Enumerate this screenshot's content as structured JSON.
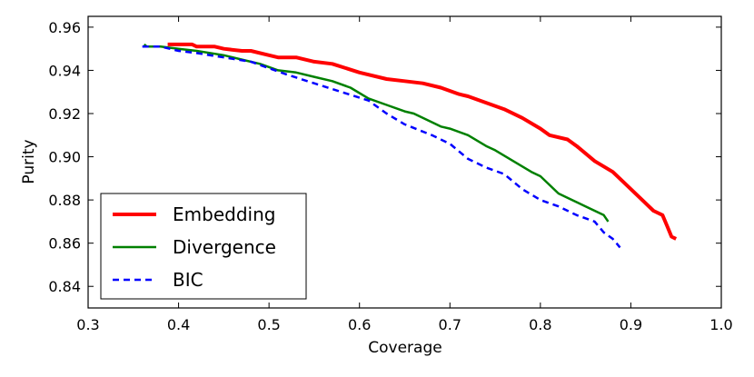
{
  "chart_data": {
    "type": "line",
    "title": "",
    "xlabel": "Coverage",
    "ylabel": "Purity",
    "xlim": [
      0.3,
      1.0
    ],
    "ylim": [
      0.83,
      0.965
    ],
    "xticks": [
      0.3,
      0.4,
      0.5,
      0.6,
      0.7,
      0.8,
      0.9,
      1.0
    ],
    "xtick_labels": [
      "0.3",
      "0.4",
      "0.5",
      "0.6",
      "0.7",
      "0.8",
      "0.9",
      "1.0"
    ],
    "yticks": [
      0.84,
      0.86,
      0.88,
      0.9,
      0.92,
      0.94,
      0.96
    ],
    "ytick_labels": [
      "0.84",
      "0.86",
      "0.88",
      "0.90",
      "0.92",
      "0.94",
      "0.96"
    ],
    "grid": false,
    "legend_position": "bottom-left",
    "series": [
      {
        "name": "Embedding",
        "color": "#ff0000",
        "style": "solid",
        "x": [
          0.388,
          0.4,
          0.415,
          0.42,
          0.44,
          0.45,
          0.47,
          0.48,
          0.5,
          0.51,
          0.53,
          0.55,
          0.57,
          0.6,
          0.63,
          0.65,
          0.67,
          0.69,
          0.71,
          0.72,
          0.74,
          0.76,
          0.78,
          0.8,
          0.81,
          0.83,
          0.84,
          0.86,
          0.88,
          0.89,
          0.91,
          0.925,
          0.935,
          0.94,
          0.945,
          0.95
        ],
        "y": [
          0.952,
          0.952,
          0.952,
          0.951,
          0.951,
          0.95,
          0.949,
          0.949,
          0.947,
          0.946,
          0.946,
          0.944,
          0.943,
          0.939,
          0.936,
          0.935,
          0.934,
          0.932,
          0.929,
          0.928,
          0.925,
          0.922,
          0.918,
          0.913,
          0.91,
          0.908,
          0.905,
          0.898,
          0.893,
          0.889,
          0.881,
          0.875,
          0.873,
          0.868,
          0.863,
          0.862
        ]
      },
      {
        "name": "Divergence",
        "color": "#008000",
        "style": "solid",
        "x": [
          0.362,
          0.365,
          0.38,
          0.4,
          0.42,
          0.45,
          0.47,
          0.49,
          0.51,
          0.53,
          0.55,
          0.57,
          0.59,
          0.61,
          0.63,
          0.65,
          0.66,
          0.68,
          0.69,
          0.7,
          0.72,
          0.74,
          0.75,
          0.77,
          0.79,
          0.8,
          0.82,
          0.83,
          0.85,
          0.86,
          0.87,
          0.875
        ],
        "y": [
          0.952,
          0.951,
          0.951,
          0.95,
          0.949,
          0.947,
          0.945,
          0.943,
          0.94,
          0.939,
          0.937,
          0.935,
          0.932,
          0.927,
          0.924,
          0.921,
          0.92,
          0.916,
          0.914,
          0.913,
          0.91,
          0.905,
          0.903,
          0.898,
          0.893,
          0.891,
          0.883,
          0.881,
          0.877,
          0.875,
          0.873,
          0.87
        ]
      },
      {
        "name": "BIC",
        "color": "#0000ff",
        "style": "dashed",
        "x": [
          0.36,
          0.38,
          0.4,
          0.42,
          0.45,
          0.48,
          0.5,
          0.52,
          0.55,
          0.58,
          0.61,
          0.63,
          0.65,
          0.68,
          0.7,
          0.72,
          0.74,
          0.76,
          0.78,
          0.8,
          0.82,
          0.84,
          0.86,
          0.87,
          0.88,
          0.888
        ],
        "y": [
          0.951,
          0.951,
          0.949,
          0.948,
          0.946,
          0.944,
          0.941,
          0.938,
          0.934,
          0.93,
          0.926,
          0.92,
          0.915,
          0.91,
          0.906,
          0.899,
          0.895,
          0.892,
          0.885,
          0.88,
          0.877,
          0.873,
          0.87,
          0.865,
          0.862,
          0.858
        ]
      }
    ]
  }
}
